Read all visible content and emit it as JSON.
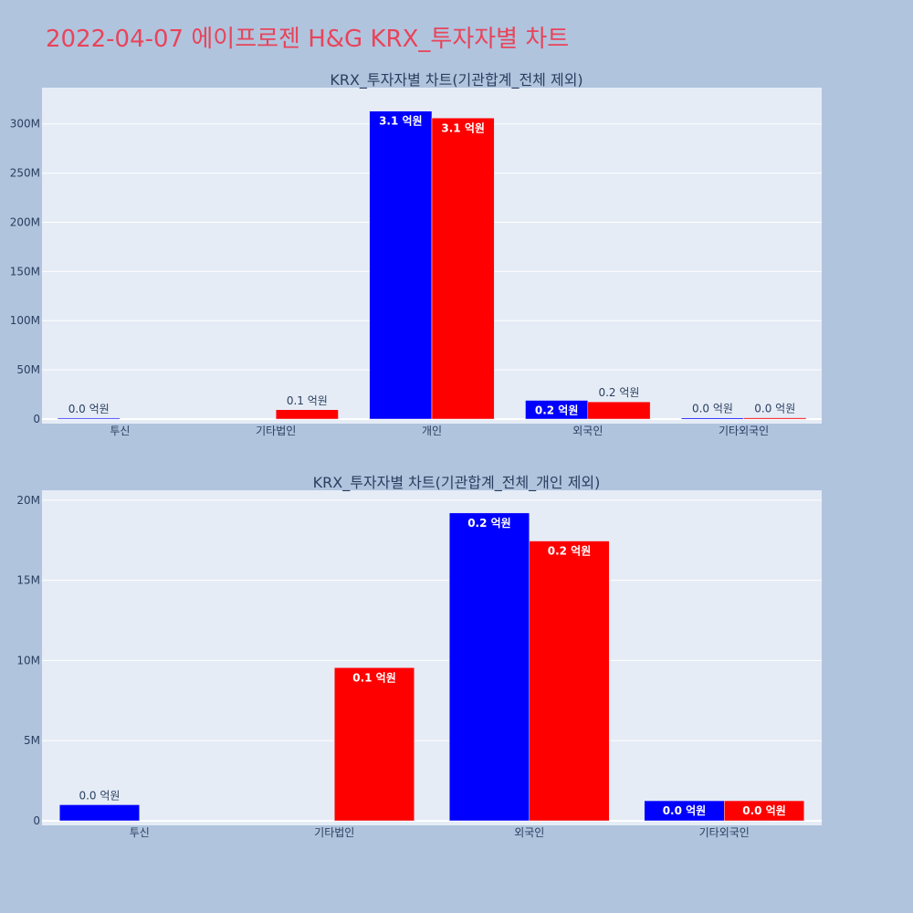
{
  "page": {
    "title": "2022-04-07 에이프로젠 H&G KRX_투자자별 차트",
    "title_color": "#e8445a",
    "background": "#b0c4de",
    "plot_background": "#e5ecf6"
  },
  "chart_data": [
    {
      "type": "bar",
      "title": "KRX_투자자별 차트(기관합계_전체 제외)",
      "categories": [
        "투신",
        "기타법인",
        "개인",
        "외국인",
        "기타외국인"
      ],
      "ylim": [
        0,
        335000000
      ],
      "yticks": [
        0,
        50000000,
        100000000,
        150000000,
        200000000,
        250000000,
        300000000
      ],
      "ytick_labels": [
        "0",
        "50M",
        "100M",
        "150M",
        "200M",
        "250M",
        "300M"
      ],
      "grid": true,
      "series": [
        {
          "color": "#0000ff",
          "values": [
            1000000,
            null,
            313000000,
            19000000,
            1200000
          ],
          "labels": [
            "0.0 억원",
            "",
            "3.1 억원",
            "0.2 억원",
            "0.0 억원"
          ]
        },
        {
          "color": "#ff0000",
          "values": [
            null,
            9500000,
            306000000,
            17500000,
            1300000
          ],
          "labels": [
            "",
            "0.1 억원",
            "3.1 억원",
            "0.2 억원",
            "0.0 억원"
          ]
        }
      ]
    },
    {
      "type": "bar",
      "title": "KRX_투자자별 차트(기관합계_전체_개인 제외)",
      "categories": [
        "투신",
        "기타법인",
        "외국인",
        "기타외국인"
      ],
      "ylim": [
        0,
        20500000
      ],
      "yticks": [
        0,
        5000000,
        10000000,
        15000000,
        20000000
      ],
      "ytick_labels": [
        "0",
        "5M",
        "10M",
        "15M",
        "20M"
      ],
      "grid": true,
      "series": [
        {
          "color": "#0000ff",
          "values": [
            1000000,
            null,
            19200000,
            1250000
          ],
          "labels": [
            "0.0 억원",
            "",
            "0.2 억원",
            "0.0 억원"
          ]
        },
        {
          "color": "#ff0000",
          "values": [
            null,
            9550000,
            17450000,
            1250000
          ],
          "labels": [
            "",
            "0.1 억원",
            "0.2 억원",
            "0.0 억원"
          ]
        }
      ]
    }
  ]
}
